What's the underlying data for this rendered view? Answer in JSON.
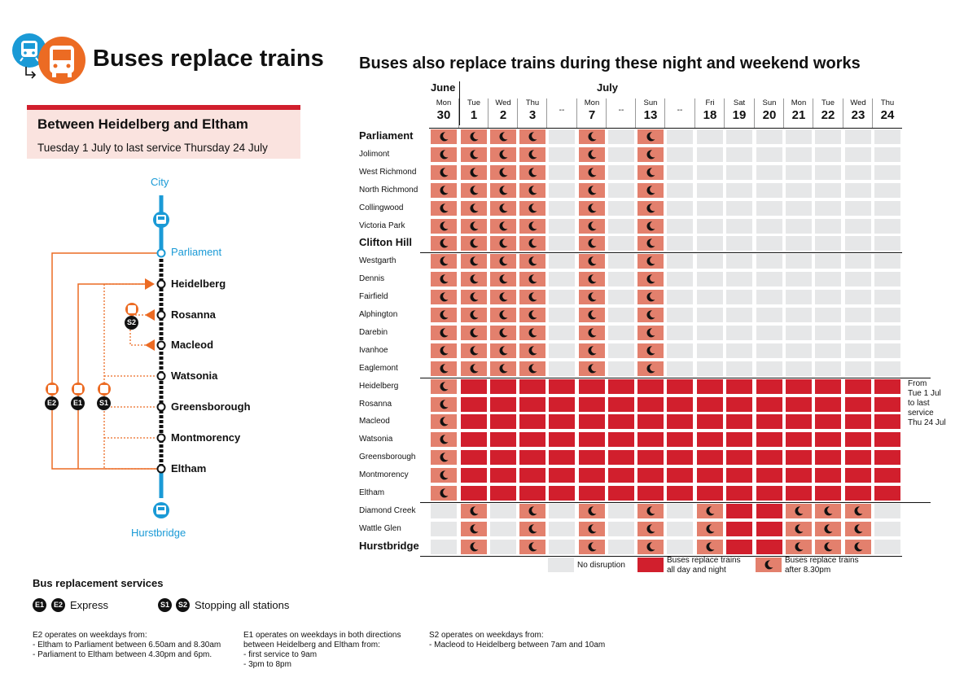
{
  "header": {
    "title": "Buses replace trains",
    "right_title": "Buses also replace trains during these night and weekend works"
  },
  "info_box": {
    "heading": "Between Heidelberg and Eltham",
    "dates": "Tuesday 1 July to last service Thursday 24 July"
  },
  "map": {
    "city": "City",
    "hurstbridge": "Hurstbridge",
    "stations": [
      "Parliament",
      "Heidelberg",
      "Rosanna",
      "Macleod",
      "Watsonia",
      "Greensborough",
      "Montmorency",
      "Eltham"
    ],
    "route_badges": [
      "E2",
      "E1",
      "S1",
      "S2"
    ]
  },
  "legend": {
    "heading": "Bus replacement services",
    "express_badges": [
      "E1",
      "E2"
    ],
    "express_label": "Express",
    "stopping_badges": [
      "S1",
      "S2"
    ],
    "stopping_label": "Stopping all stations",
    "no_disruption": "No disruption",
    "all_day": "Buses replace trains all day and night",
    "after_830": "Buses replace trains after 8.30pm"
  },
  "notes": {
    "e2": "E2 operates on weekdays from:\n- Eltham to Parliament between 6.50am and 8.30am\n- Parliament to Eltham between 4.30pm and 6pm.",
    "e1": "E1 operates on weekdays in both directions\nbetween Heidelberg and Eltham from:\n- first service to 9am\n- 3pm to 8pm",
    "s2": "S2 operates on weekdays from:\n- Macleod to Heidelberg between 7am and 10am"
  },
  "schedule": {
    "months": [
      "June",
      "July"
    ],
    "columns": [
      {
        "day": "Mon",
        "date": "30"
      },
      {
        "day": "Tue",
        "date": "1"
      },
      {
        "day": "Wed",
        "date": "2"
      },
      {
        "day": "Thu",
        "date": "3"
      },
      {
        "day": "",
        "date": "--"
      },
      {
        "day": "Mon",
        "date": "7"
      },
      {
        "day": "",
        "date": "--"
      },
      {
        "day": "Sun",
        "date": "13"
      },
      {
        "day": "",
        "date": "--"
      },
      {
        "day": "Fri",
        "date": "18"
      },
      {
        "day": "Sat",
        "date": "19"
      },
      {
        "day": "Sun",
        "date": "20"
      },
      {
        "day": "Mon",
        "date": "21"
      },
      {
        "day": "Tue",
        "date": "22"
      },
      {
        "day": "Wed",
        "date": "23"
      },
      {
        "day": "Thu",
        "date": "24"
      }
    ],
    "cell_key": {
      "n": "after_830",
      "a": "all_day",
      ".": "no_disruption"
    },
    "rows": [
      {
        "station": "Parliament",
        "major": true,
        "cells": "nnnn.n.n........"
      },
      {
        "station": "Jolimont",
        "major": false,
        "cells": "nnnn.n.n........"
      },
      {
        "station": "West Richmond",
        "major": false,
        "cells": "nnnn.n.n........"
      },
      {
        "station": "North Richmond",
        "major": false,
        "cells": "nnnn.n.n........"
      },
      {
        "station": "Collingwood",
        "major": false,
        "cells": "nnnn.n.n........"
      },
      {
        "station": "Victoria Park",
        "major": false,
        "cells": "nnnn.n.n........"
      },
      {
        "station": "Clifton Hill",
        "major": true,
        "cells": "nnnn.n.n........"
      },
      {
        "station": "Westgarth",
        "major": false,
        "cells": "nnnn.n.n........"
      },
      {
        "station": "Dennis",
        "major": false,
        "cells": "nnnn.n.n........"
      },
      {
        "station": "Fairfield",
        "major": false,
        "cells": "nnnn.n.n........"
      },
      {
        "station": "Alphington",
        "major": false,
        "cells": "nnnn.n.n........"
      },
      {
        "station": "Darebin",
        "major": false,
        "cells": "nnnn.n.n........"
      },
      {
        "station": "Ivanhoe",
        "major": false,
        "cells": "nnnn.n.n........"
      },
      {
        "station": "Eaglemont",
        "major": false,
        "cells": "nnnn.n.n........"
      },
      {
        "station": "Heidelberg",
        "major": false,
        "cells": "naaaaaaaaaaaaaaa"
      },
      {
        "station": "Rosanna",
        "major": false,
        "cells": "naaaaaaaaaaaaaaa"
      },
      {
        "station": "Macleod",
        "major": false,
        "cells": "naaaaaaaaaaaaaaa"
      },
      {
        "station": "Watsonia",
        "major": false,
        "cells": "naaaaaaaaaaaaaaa"
      },
      {
        "station": "Greensborough",
        "major": false,
        "cells": "naaaaaaaaaaaaaaa"
      },
      {
        "station": "Montmorency",
        "major": false,
        "cells": "naaaaaaaaaaaaaaa"
      },
      {
        "station": "Eltham",
        "major": false,
        "cells": "naaaaaaaaaaaaaaa"
      },
      {
        "station": "Diamond Creek",
        "major": false,
        "cells": ".n.n.n.n.naannn."
      },
      {
        "station": "Wattle Glen",
        "major": false,
        "cells": ".n.n.n.n.naannn."
      },
      {
        "station": "Hurstbridge",
        "major": true,
        "cells": ".n.n.n.n.naannn."
      }
    ],
    "side_note": [
      "From",
      "Tue 1 Jul",
      "to last",
      "service",
      "Thu 24 Jul"
    ]
  }
}
